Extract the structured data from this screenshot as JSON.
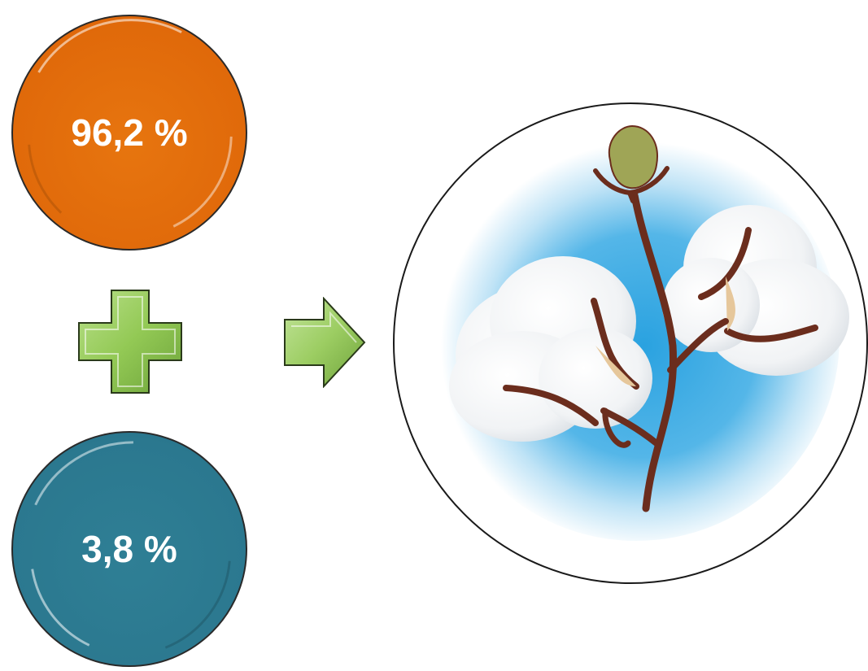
{
  "top_circle": {
    "value": "96,2 %",
    "color": "#e0690a"
  },
  "bottom_circle": {
    "value": "3,8 %",
    "color": "#2b788f"
  },
  "plus_sign": {
    "icon": "plus-icon",
    "color": "#93c955"
  },
  "arrow": {
    "icon": "arrow-right-icon",
    "color": "#93c955"
  },
  "illustration": {
    "icon": "cotton-plant-icon",
    "background": "#3aa9e0"
  }
}
